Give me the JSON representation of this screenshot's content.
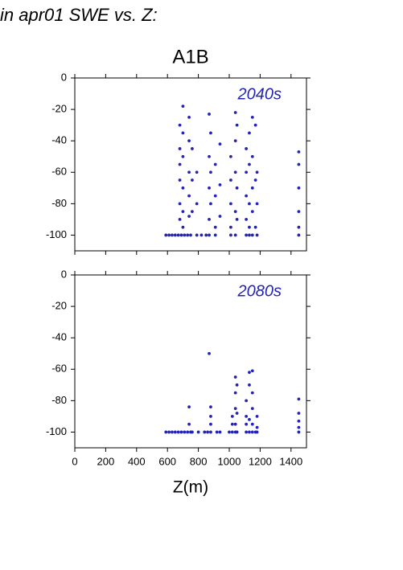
{
  "header": "in apr01 SWE vs. Z:",
  "chart_data": [
    {
      "type": "scatter",
      "title": "A1B",
      "annotation": "2040s",
      "color": "#2323b4",
      "xlim": [
        0,
        1500
      ],
      "xticks": [
        0,
        200,
        400,
        600,
        800,
        1000,
        1200,
        1400
      ],
      "xtick_labels": false,
      "ylim": [
        -110,
        0
      ],
      "yticks": [
        -100,
        -80,
        -60,
        -40,
        -20,
        0
      ],
      "x": [
        590,
        610,
        630,
        650,
        670,
        690,
        710,
        730,
        750,
        680,
        680,
        680,
        680,
        680,
        680,
        700,
        700,
        700,
        700,
        700,
        700,
        740,
        740,
        740,
        740,
        740,
        760,
        760,
        760,
        790,
        790,
        790,
        820,
        850,
        870,
        870,
        870,
        870,
        870,
        880,
        880,
        880,
        910,
        910,
        910,
        910,
        940,
        940,
        940,
        1010,
        1010,
        1010,
        1010,
        1010,
        1040,
        1040,
        1040,
        1040,
        1040,
        1050,
        1050,
        1050,
        1110,
        1110,
        1110,
        1110,
        1110,
        1130,
        1130,
        1130,
        1130,
        1130,
        1150,
        1150,
        1150,
        1150,
        1150,
        1170,
        1170,
        1170,
        1180,
        1180,
        1180,
        1450,
        1450,
        1450,
        1450,
        1450,
        1450
      ],
      "y": [
        -100,
        -100,
        -100,
        -100,
        -100,
        -100,
        -100,
        -100,
        -100,
        -30,
        -45,
        -55,
        -65,
        -80,
        -90,
        -18,
        -35,
        -50,
        -70,
        -85,
        -95,
        -25,
        -40,
        -60,
        -75,
        -88,
        -45,
        -65,
        -85,
        -60,
        -80,
        -100,
        -100,
        -100,
        -23,
        -50,
        -70,
        -90,
        -100,
        -35,
        -60,
        -80,
        -55,
        -75,
        -95,
        -100,
        -42,
        -68,
        -88,
        -50,
        -65,
        -80,
        -95,
        -100,
        -22,
        -40,
        -60,
        -85,
        -100,
        -30,
        -70,
        -90,
        -45,
        -60,
        -75,
        -90,
        -100,
        -35,
        -55,
        -80,
        -95,
        -100,
        -25,
        -50,
        -70,
        -85,
        -100,
        -30,
        -65,
        -95,
        -60,
        -80,
        -100,
        -47,
        -55,
        -70,
        -85,
        -95,
        -100
      ]
    },
    {
      "type": "scatter",
      "annotation": "2080s",
      "xlabel": "Z(m)",
      "color": "#2323b4",
      "xlim": [
        0,
        1500
      ],
      "xticks": [
        0,
        200,
        400,
        600,
        800,
        1000,
        1200,
        1400
      ],
      "xtick_labels": true,
      "ylim": [
        -110,
        0
      ],
      "yticks": [
        -100,
        -80,
        -60,
        -40,
        -20,
        0
      ],
      "x": [
        590,
        610,
        630,
        650,
        670,
        690,
        710,
        730,
        750,
        760,
        800,
        840,
        860,
        880,
        920,
        940,
        1000,
        1020,
        1040,
        1050,
        1110,
        1130,
        1150,
        1170,
        1180,
        1450,
        740,
        740,
        870,
        880,
        880,
        880,
        1020,
        1020,
        1040,
        1040,
        1040,
        1040,
        1050,
        1050,
        1110,
        1110,
        1110,
        1130,
        1130,
        1130,
        1150,
        1150,
        1150,
        1150,
        1180,
        1180,
        1450,
        1450,
        1450,
        1450
      ],
      "y": [
        -100,
        -100,
        -100,
        -100,
        -100,
        -100,
        -100,
        -100,
        -100,
        -100,
        -100,
        -100,
        -100,
        -100,
        -100,
        -100,
        -100,
        -100,
        -100,
        -100,
        -100,
        -100,
        -100,
        -100,
        -100,
        -100,
        -84,
        -95,
        -50,
        -84,
        -90,
        -95,
        -90,
        -95,
        -65,
        -75,
        -85,
        -95,
        -70,
        -88,
        -80,
        -90,
        -95,
        -62,
        -70,
        -92,
        -61,
        -75,
        -85,
        -95,
        -90,
        -97,
        -79,
        -88,
        -93,
        -97
      ]
    }
  ]
}
